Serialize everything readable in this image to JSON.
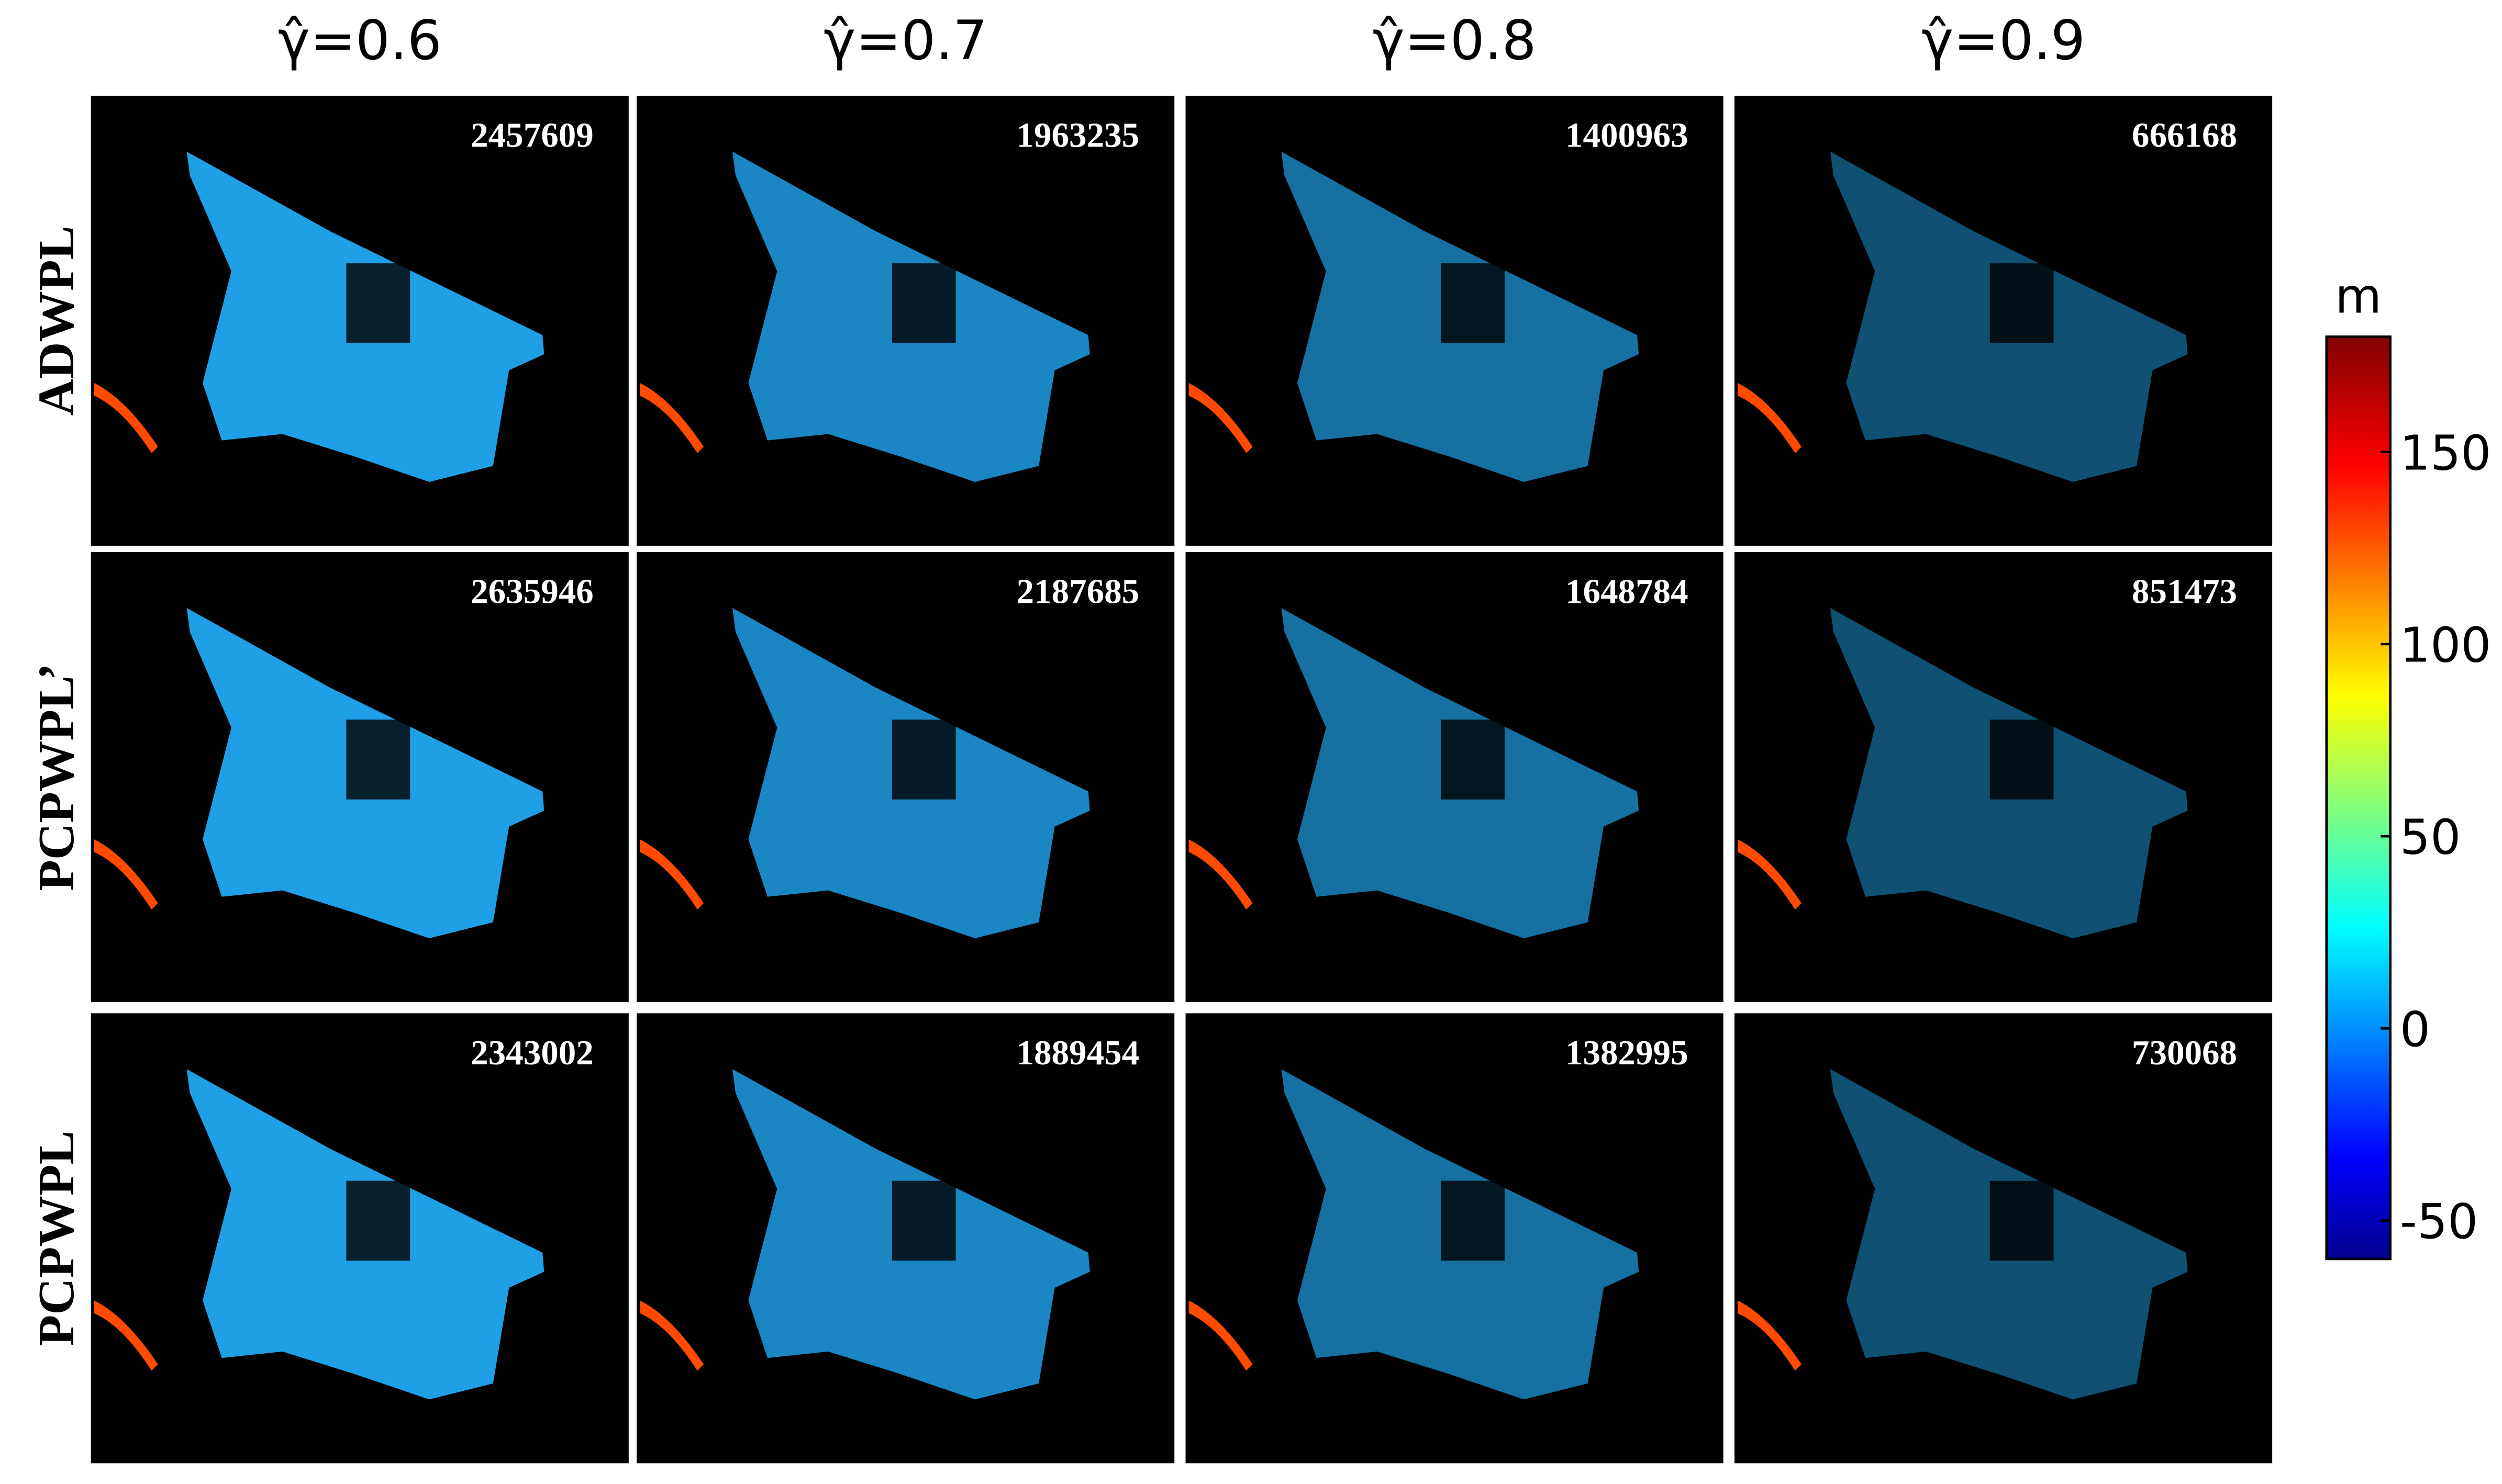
{
  "columns": [
    "γ̂=0.6",
    "γ̂=0.7",
    "γ̂=0.8",
    "γ̂=0.9"
  ],
  "rows": [
    {
      "label": "ADWPL",
      "counts": [
        "2457609",
        "1963235",
        "1400963",
        "666168"
      ]
    },
    {
      "label": "PCPWPL’",
      "counts": [
        "2635946",
        "2187685",
        "1648784",
        "851473"
      ]
    },
    {
      "label": "PCPWPL",
      "counts": [
        "2343002",
        "1889454",
        "1382995",
        "730068"
      ]
    }
  ],
  "colorbar": {
    "label": "m",
    "lim": [
      -60,
      180
    ],
    "ticks": [
      -50,
      0,
      50,
      100,
      150
    ]
  }
}
